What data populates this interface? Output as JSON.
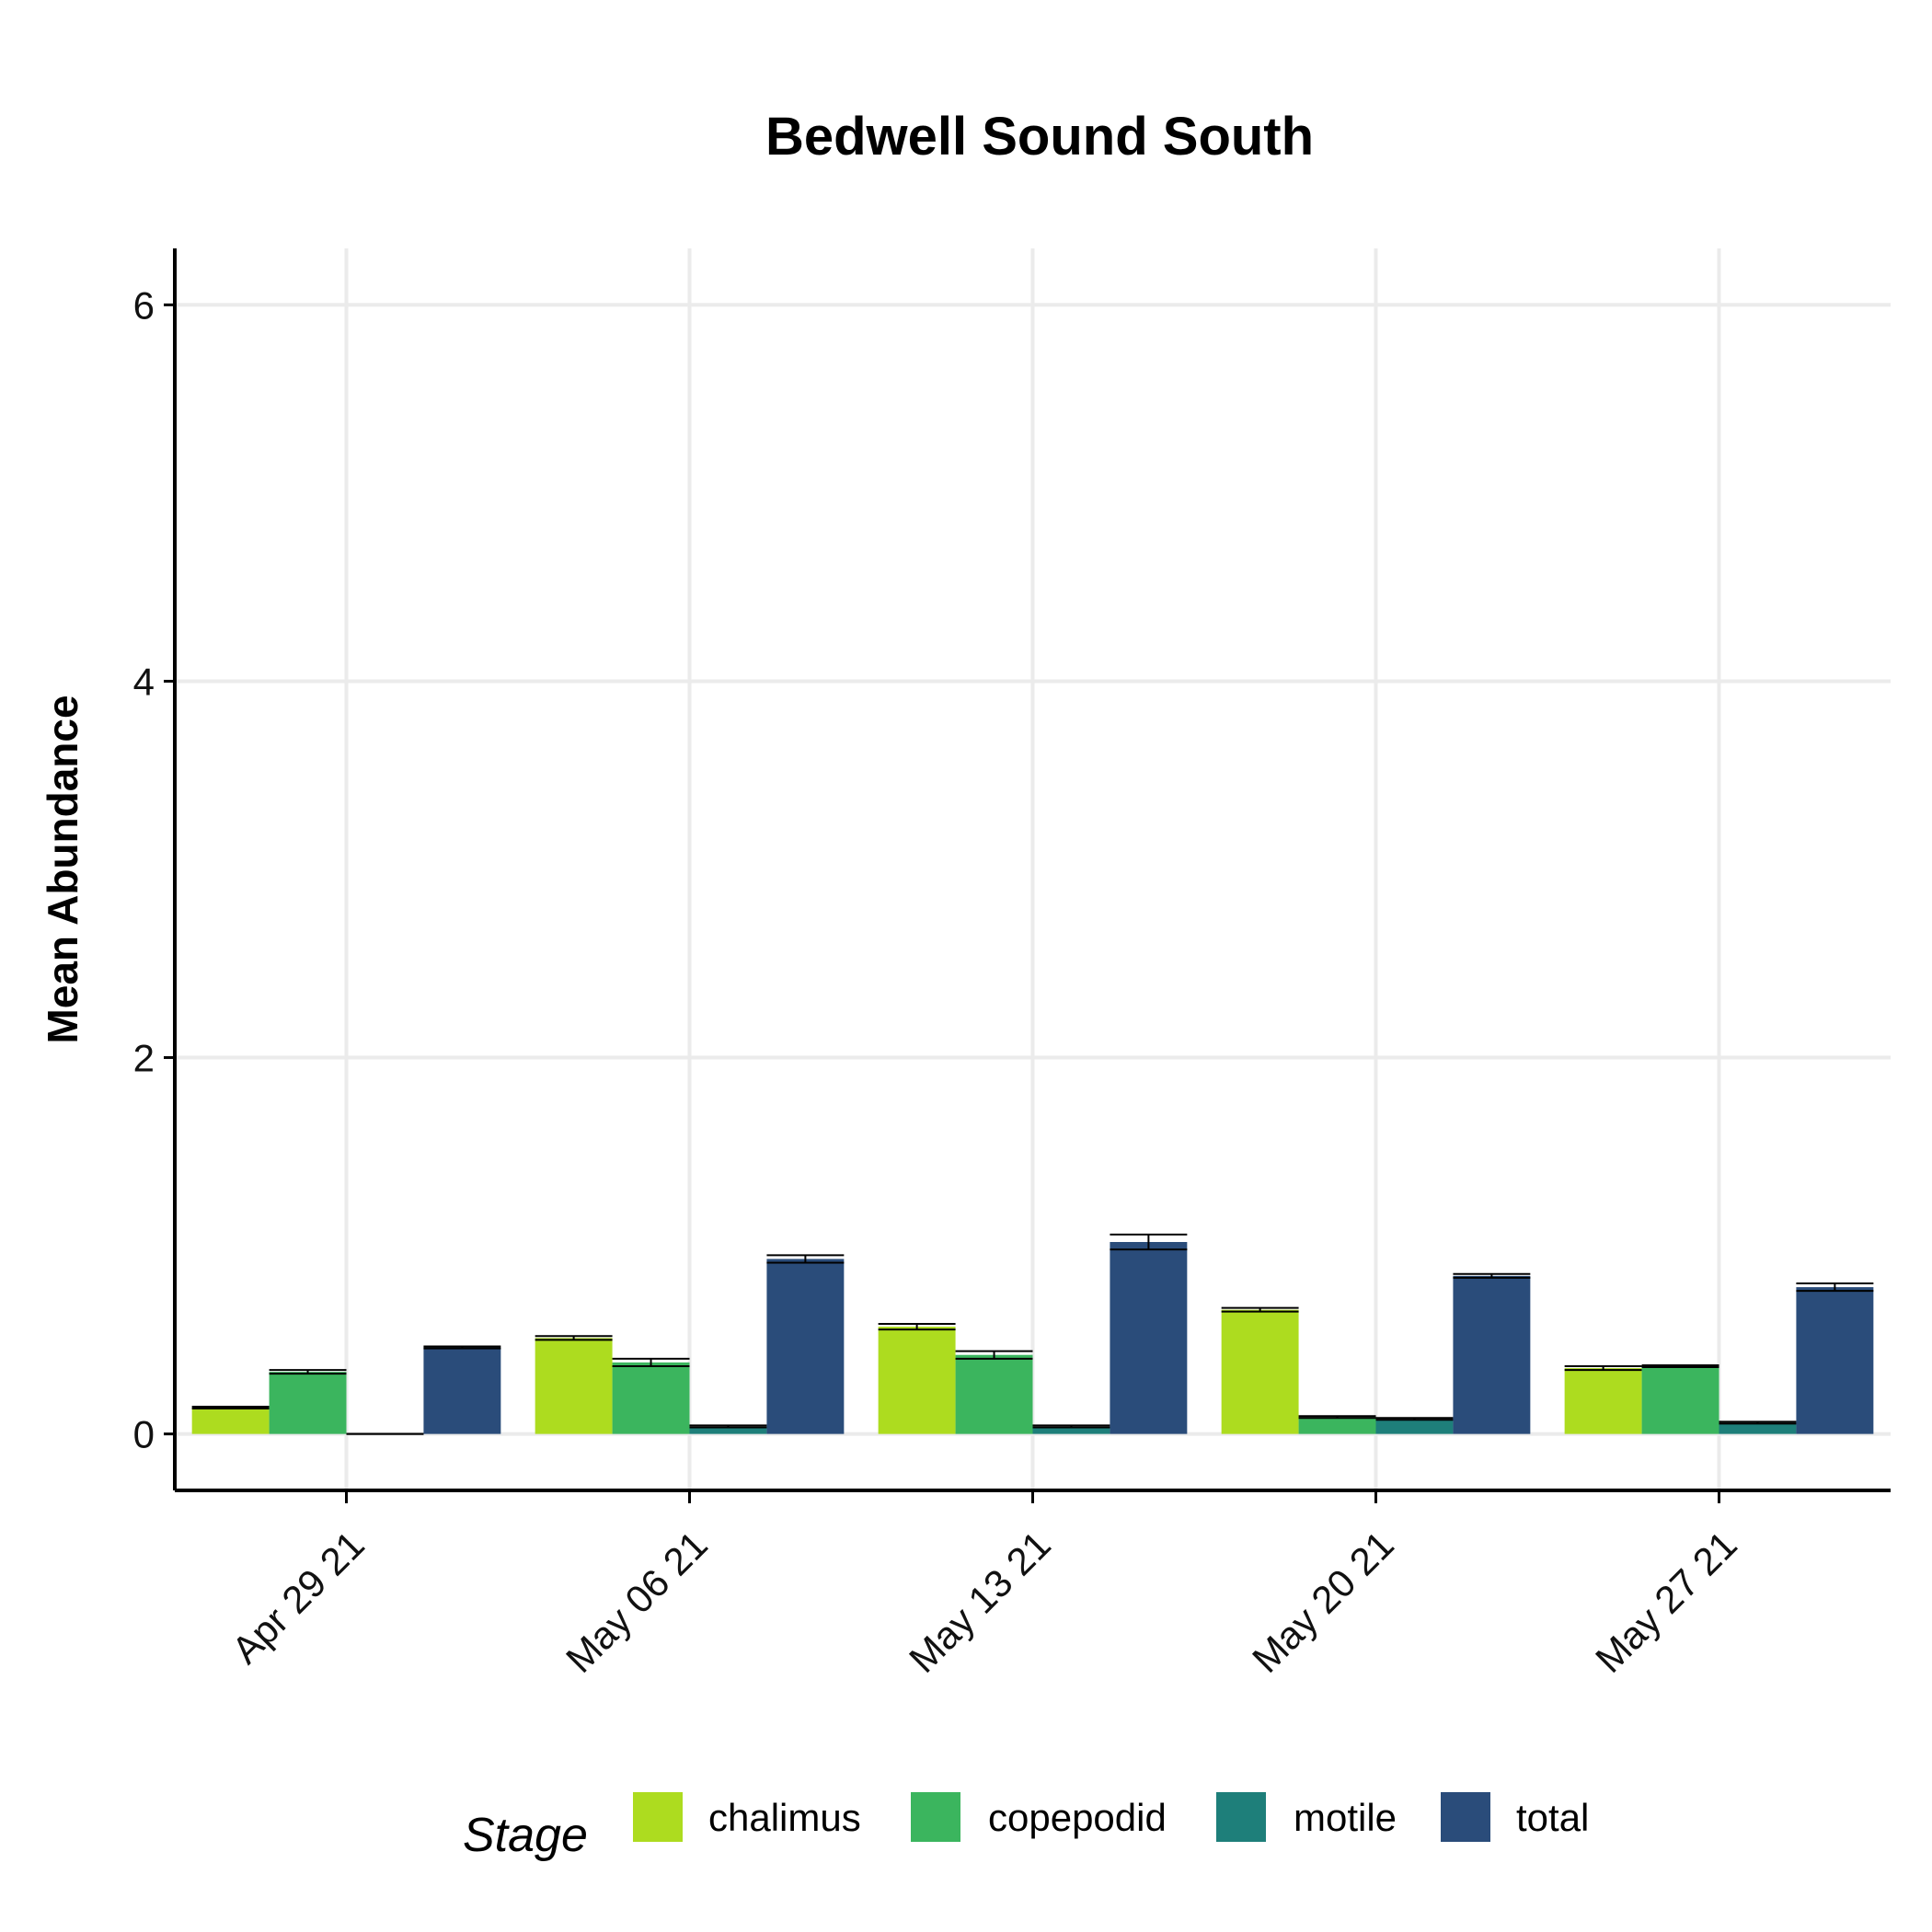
{
  "chart_data": {
    "type": "bar",
    "title": "Bedwell Sound South",
    "xlabel": "",
    "ylabel": "Mean Abundance",
    "ylim": [
      -0.3,
      6.3
    ],
    "yticks": [
      0,
      2,
      4,
      6
    ],
    "grid": true,
    "categories": [
      "Apr 29 21",
      "May 06 21",
      "May 13 21",
      "May 20 21",
      "May 27 21"
    ],
    "series": [
      {
        "name": "chalimus",
        "color": "#addc1f",
        "values": [
          0.14,
          0.51,
          0.57,
          0.66,
          0.35
        ],
        "errors": [
          0.005,
          0.01,
          0.015,
          0.01,
          0.01
        ]
      },
      {
        "name": "copepodid",
        "color": "#3bb55e",
        "values": [
          0.33,
          0.38,
          0.42,
          0.09,
          0.36
        ],
        "errors": [
          0.01,
          0.02,
          0.02,
          0.005,
          0.005
        ]
      },
      {
        "name": "motile",
        "color": "#1e7f7a",
        "values": [
          0.0,
          0.04,
          0.04,
          0.08,
          0.06
        ],
        "errors": [
          0.0,
          0.005,
          0.005,
          0.005,
          0.005
        ]
      },
      {
        "name": "total",
        "color": "#2a4c7a",
        "values": [
          0.46,
          0.93,
          1.02,
          0.84,
          0.78
        ],
        "errors": [
          0.005,
          0.02,
          0.04,
          0.01,
          0.02
        ]
      }
    ],
    "legend": {
      "title": "Stage",
      "position": "bottom"
    }
  }
}
